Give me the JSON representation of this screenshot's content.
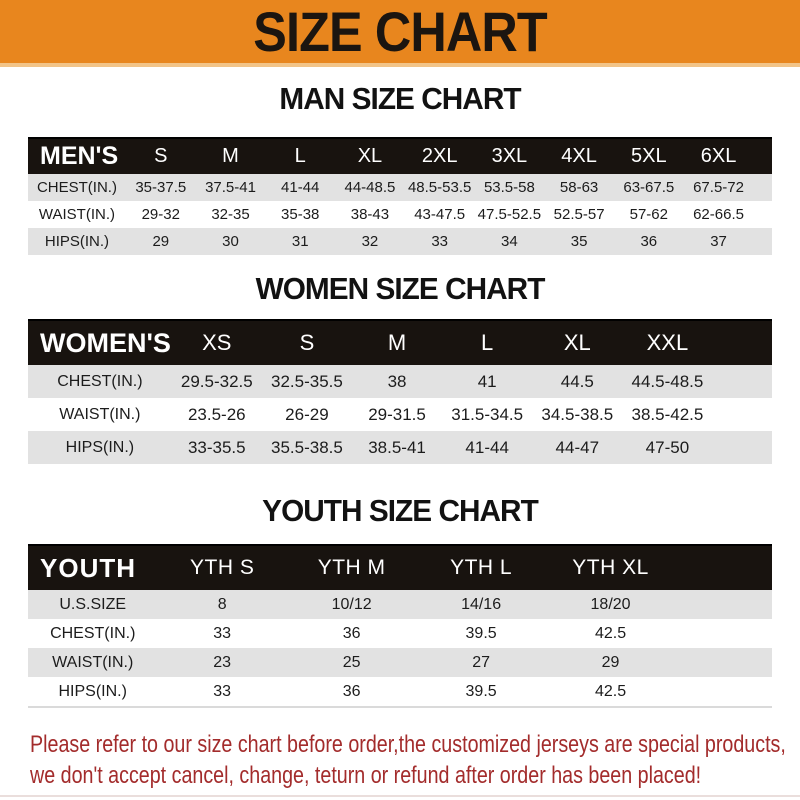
{
  "header": {
    "title": "SIZE CHART",
    "banner_color": "#E8861E"
  },
  "sections": [
    {
      "id": "men",
      "heading": "MAN SIZE CHART",
      "corner_label": "MEN'S",
      "columns": [
        "S",
        "M",
        "L",
        "XL",
        "2XL",
        "3XL",
        "4XL",
        "5XL",
        "6XL"
      ],
      "rows": [
        {
          "label": "CHEST(IN.)",
          "values": [
            "35-37.5",
            "37.5-41",
            "41-44",
            "44-48.5",
            "48.5-53.5",
            "53.5-58",
            "58-63",
            "63-67.5",
            "67.5-72"
          ]
        },
        {
          "label": "WAIST(IN.)",
          "values": [
            "29-32",
            "32-35",
            "35-38",
            "38-43",
            "43-47.5",
            "47.5-52.5",
            "52.5-57",
            "57-62",
            "62-66.5"
          ]
        },
        {
          "label": "HIPS(IN.)",
          "values": [
            "29",
            "30",
            "31",
            "32",
            "33",
            "34",
            "35",
            "36",
            "37"
          ]
        }
      ]
    },
    {
      "id": "women",
      "heading": "WOMEN SIZE CHART",
      "corner_label": "WOMEN'S",
      "columns": [
        "XS",
        "S",
        "M",
        "L",
        "XL",
        "XXL"
      ],
      "rows": [
        {
          "label": "CHEST(IN.)",
          "values": [
            "29.5-32.5",
            "32.5-35.5",
            "38",
            "41",
            "44.5",
            "44.5-48.5"
          ]
        },
        {
          "label": "WAIST(IN.)",
          "values": [
            "23.5-26",
            "26-29",
            "29-31.5",
            "31.5-34.5",
            "34.5-38.5",
            "38.5-42.5"
          ]
        },
        {
          "label": "HIPS(IN.)",
          "values": [
            "33-35.5",
            "35.5-38.5",
            "38.5-41",
            "41-44",
            "44-47",
            "47-50"
          ]
        }
      ]
    },
    {
      "id": "youth",
      "heading": "YOUTH SIZE CHART",
      "corner_label": "YOUTH",
      "columns": [
        "YTH S",
        "YTH M",
        "YTH L",
        "YTH XL"
      ],
      "rows": [
        {
          "label": "U.S.SIZE",
          "values": [
            "8",
            "10/12",
            "14/16",
            "18/20"
          ]
        },
        {
          "label": "CHEST(IN.)",
          "values": [
            "33",
            "36",
            "39.5",
            "42.5"
          ]
        },
        {
          "label": "WAIST(IN.)",
          "values": [
            "23",
            "25",
            "27",
            "29"
          ]
        },
        {
          "label": "HIPS(IN.)",
          "values": [
            "33",
            "36",
            "39.5",
            "42.5"
          ]
        }
      ]
    }
  ],
  "disclaimer": {
    "line1": "Please refer to our size chart before order,the customized jerseys are special products,",
    "line2": "we don't accept cancel, change, teturn or refund after order has been placed!",
    "color": "#A32C2C"
  },
  "colors": {
    "banner_orange": "#E8861E",
    "band_black": "#18130F",
    "row_gray": "#E2E2E2",
    "disclaimer_red": "#A32C2C"
  }
}
